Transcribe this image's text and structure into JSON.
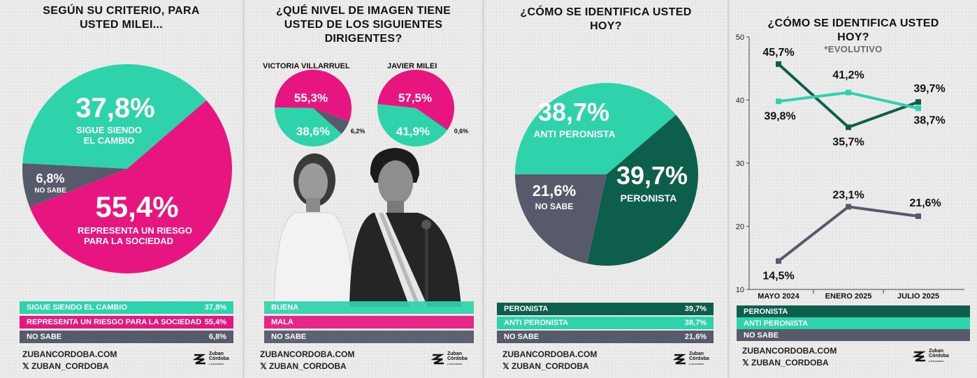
{
  "colors": {
    "teal": "#2fd3ab",
    "magenta": "#e6157f",
    "slate": "#565a6a",
    "darkgreen": "#0d5e4a",
    "white": "#ffffff"
  },
  "footer": {
    "site": "ZUBANCORDOBA.COM",
    "handle": "𝕏 ZUBAN_CORDOBA",
    "logo_line1": "Zuban",
    "logo_line2": "Córdoba",
    "logo_line3": "y Asociados"
  },
  "panel1": {
    "title": "SEGÚN SU CRITERIO, PARA\nUSTED MILEI...",
    "labels": {
      "teal_pct": "37,8%",
      "teal_text1": "SIGUE SIENDO",
      "teal_text2": "EL CAMBIO",
      "slate_pct": "6,8%",
      "slate_text": "NO SABE",
      "magenta_pct": "55,4%",
      "magenta_text1": "REPRESENTA UN RIESGO",
      "magenta_text2": "PARA LA SOCIEDAD"
    },
    "legend": [
      {
        "label": "SIGUE SIENDO EL CAMBIO",
        "value": "37,8%"
      },
      {
        "label": "REPRESENTA UN RIESGO PARA LA SOCIEDAD",
        "value": "55,4%"
      },
      {
        "label": "NO SABE",
        "value": "6,8%"
      }
    ]
  },
  "panel2": {
    "title": "¿QUÉ NIVEL DE IMAGEN TIENE\nUSTED DE LOS SIGUIENTES\nDIRIGENTES?",
    "pie1_name": "VICTORIA VILLARRUEL",
    "pie2_name": "JAVIER MILEI",
    "pie1": {
      "mala": "55,3%",
      "buena": "38,6%",
      "nosabe": "6,2%"
    },
    "pie2": {
      "mala": "57,5%",
      "buena": "41,9%",
      "nosabe": "0,6%"
    },
    "legend": [
      {
        "label": "BUENA"
      },
      {
        "label": "MALA"
      },
      {
        "label": "NO SABE"
      }
    ]
  },
  "panel3": {
    "title": "¿CÓMO SE IDENTIFICA USTED\nHOY?",
    "labels": {
      "teal_pct": "38,7%",
      "teal_text": "ANTI PERONISTA",
      "green_pct": "39,7%",
      "green_text": "PERONISTA",
      "slate_pct": "21,6%",
      "slate_text": "NO SABE"
    },
    "legend": [
      {
        "label": "PERONISTA",
        "value": "39,7%"
      },
      {
        "label": "ANTI PERONISTA",
        "value": "38,7%"
      },
      {
        "label": "NO SABE",
        "value": "21,6%"
      }
    ]
  },
  "panel4": {
    "title": "¿CÓMO SE IDENTIFICA USTED\nHOY?",
    "subtitle": "*EVOLUTIVO",
    "legend": [
      {
        "label": "PERONISTA"
      },
      {
        "label": "ANTI PERONISTA"
      },
      {
        "label": "NO SABE"
      }
    ]
  },
  "chart_data": [
    {
      "type": "pie",
      "title": "SEGÚN SU CRITERIO, PARA USTED MILEI...",
      "categories": [
        "SIGUE SIENDO EL CAMBIO",
        "REPRESENTA UN RIESGO PARA LA SOCIEDAD",
        "NO SABE"
      ],
      "values": [
        37.8,
        55.4,
        6.8
      ],
      "colors": [
        "#2fd3ab",
        "#e6157f",
        "#565a6a"
      ]
    },
    {
      "type": "pie",
      "title": "VICTORIA VILLARRUEL",
      "categories": [
        "BUENA",
        "MALA",
        "NO SABE"
      ],
      "values": [
        38.6,
        55.3,
        6.2
      ],
      "colors": [
        "#2fd3ab",
        "#e6157f",
        "#565a6a"
      ]
    },
    {
      "type": "pie",
      "title": "JAVIER MILEI",
      "categories": [
        "BUENA",
        "MALA",
        "NO SABE"
      ],
      "values": [
        41.9,
        57.5,
        0.6
      ],
      "colors": [
        "#2fd3ab",
        "#e6157f",
        "#565a6a"
      ]
    },
    {
      "type": "pie",
      "title": "¿CÓMO SE IDENTIFICA USTED HOY?",
      "categories": [
        "PERONISTA",
        "ANTI PERONISTA",
        "NO SABE"
      ],
      "values": [
        39.7,
        38.7,
        21.6
      ],
      "colors": [
        "#0d5e4a",
        "#2fd3ab",
        "#565a6a"
      ]
    },
    {
      "type": "line",
      "title": "¿CÓMO SE IDENTIFICA USTED HOY?",
      "subtitle": "*EVOLUTIVO",
      "categories": [
        "MAYO 2024",
        "ENERO 2025",
        "JULIO 2025"
      ],
      "yticks": [
        "10",
        "20",
        "30",
        "40",
        "50"
      ],
      "ylim": [
        10,
        50
      ],
      "series": [
        {
          "name": "PERONISTA",
          "values": [
            45.7,
            35.7,
            39.7
          ],
          "labels": [
            "45,7%",
            "35,7%",
            "39,7%"
          ],
          "color": "#0d5e4a"
        },
        {
          "name": "ANTI PERONISTA",
          "values": [
            39.8,
            41.2,
            38.7
          ],
          "labels": [
            "39,8%",
            "41,2%",
            "38,7%"
          ],
          "color": "#2fd3ab"
        },
        {
          "name": "NO SABE",
          "values": [
            14.5,
            23.1,
            21.6
          ],
          "labels": [
            "14,5%",
            "23,1%",
            "21,6%"
          ],
          "color": "#565a6a"
        }
      ]
    }
  ]
}
